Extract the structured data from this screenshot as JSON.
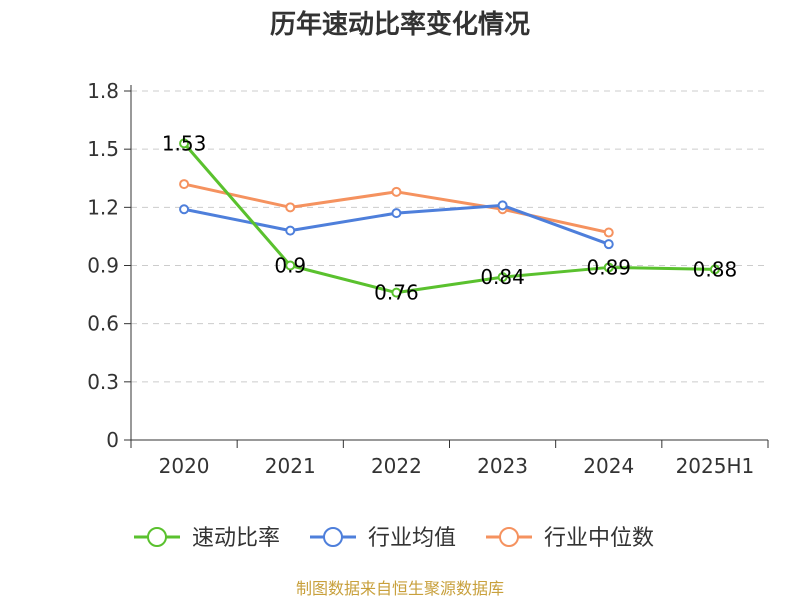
{
  "chart_data": {
    "type": "line",
    "title": "历年速动比率变化情况",
    "xlabel": "",
    "ylabel": "",
    "categories": [
      "2020",
      "2021",
      "2022",
      "2023",
      "2024",
      "2025H1"
    ],
    "ylim": [
      0,
      1.8
    ],
    "yticks": [
      "0",
      "0.3",
      "0.6",
      "0.9",
      "1.2",
      "1.5",
      "1.8"
    ],
    "grid": true,
    "legend_position": "bottom",
    "series": [
      {
        "name": "速动比率",
        "color": "#5ac12e",
        "values": [
          1.53,
          0.9,
          0.76,
          0.84,
          0.89,
          0.88
        ],
        "labels": [
          "1.53",
          "0.9",
          "0.76",
          "0.84",
          "0.89",
          "0.88"
        ]
      },
      {
        "name": "行业均值",
        "color": "#4e7fdb",
        "values": [
          1.19,
          1.08,
          1.17,
          1.21,
          1.01,
          null
        ]
      },
      {
        "name": "行业中位数",
        "color": "#f5925f",
        "values": [
          1.32,
          1.2,
          1.28,
          1.19,
          1.07,
          null
        ]
      }
    ]
  },
  "source": "制图数据来自恒生聚源数据库"
}
